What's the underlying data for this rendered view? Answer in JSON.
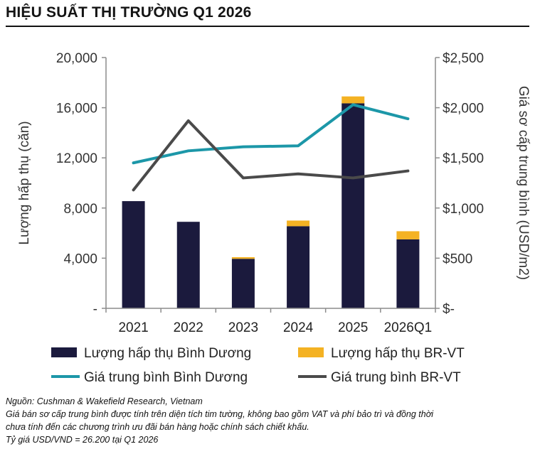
{
  "title": "HIỆU SUẤT THỊ TRƯỜNG Q1 2026",
  "notes": [
    "Nguồn: Cushman & Wakefield Research, Vietnam",
    "Giá bán sơ cấp trung bình được tính trên diện tích tim tường, không bao gồm VAT và phí bảo trì và đồng thời",
    "chưa tính đến các chương trình ưu đãi bán hàng hoặc chính sách chiết khấu.",
    "Tỷ giá USD/VND = 26.200 tại Q1 2026"
  ],
  "chart_data": {
    "type": "bar",
    "stacked": true,
    "categories": [
      "2021",
      "2022",
      "2023",
      "2024",
      "2025",
      "2026Q1"
    ],
    "ylabel_left": "Lượng hấp thụ (căn)",
    "ylabel_right": "Giá sơ cấp trung bình (USD/m2)",
    "ylim_left": [
      0,
      20000
    ],
    "ylim_right": [
      0,
      2500
    ],
    "yticks_left": [
      "-",
      "4,000",
      "8,000",
      "12,000",
      "16,000",
      "20,000"
    ],
    "yticks_right": [
      "$-",
      "$500",
      "$1,000",
      "$1,500",
      "$2,000",
      "$2,500"
    ],
    "grid": false,
    "legend_position": "bottom",
    "series": [
      {
        "name": "Lượng hấp thụ Bình Dương",
        "kind": "bar",
        "axis": "left",
        "color": "#1b1a3d",
        "values": [
          8550,
          6900,
          3950,
          6550,
          16350,
          5500
        ]
      },
      {
        "name": "Lượng hấp thụ BR-VT",
        "kind": "bar",
        "axis": "left",
        "color": "#f4b223",
        "values": [
          0,
          0,
          130,
          450,
          550,
          650
        ]
      },
      {
        "name": "Giá trung bình Bình Dương",
        "kind": "line",
        "axis": "right",
        "color": "#1c97a8",
        "values": [
          1450,
          1570,
          1610,
          1620,
          2030,
          1890
        ]
      },
      {
        "name": "Giá trung bình BR-VT",
        "kind": "line",
        "axis": "right",
        "color": "#4a4a4a",
        "values": [
          1180,
          1870,
          1300,
          1340,
          1300,
          1370
        ]
      }
    ]
  }
}
